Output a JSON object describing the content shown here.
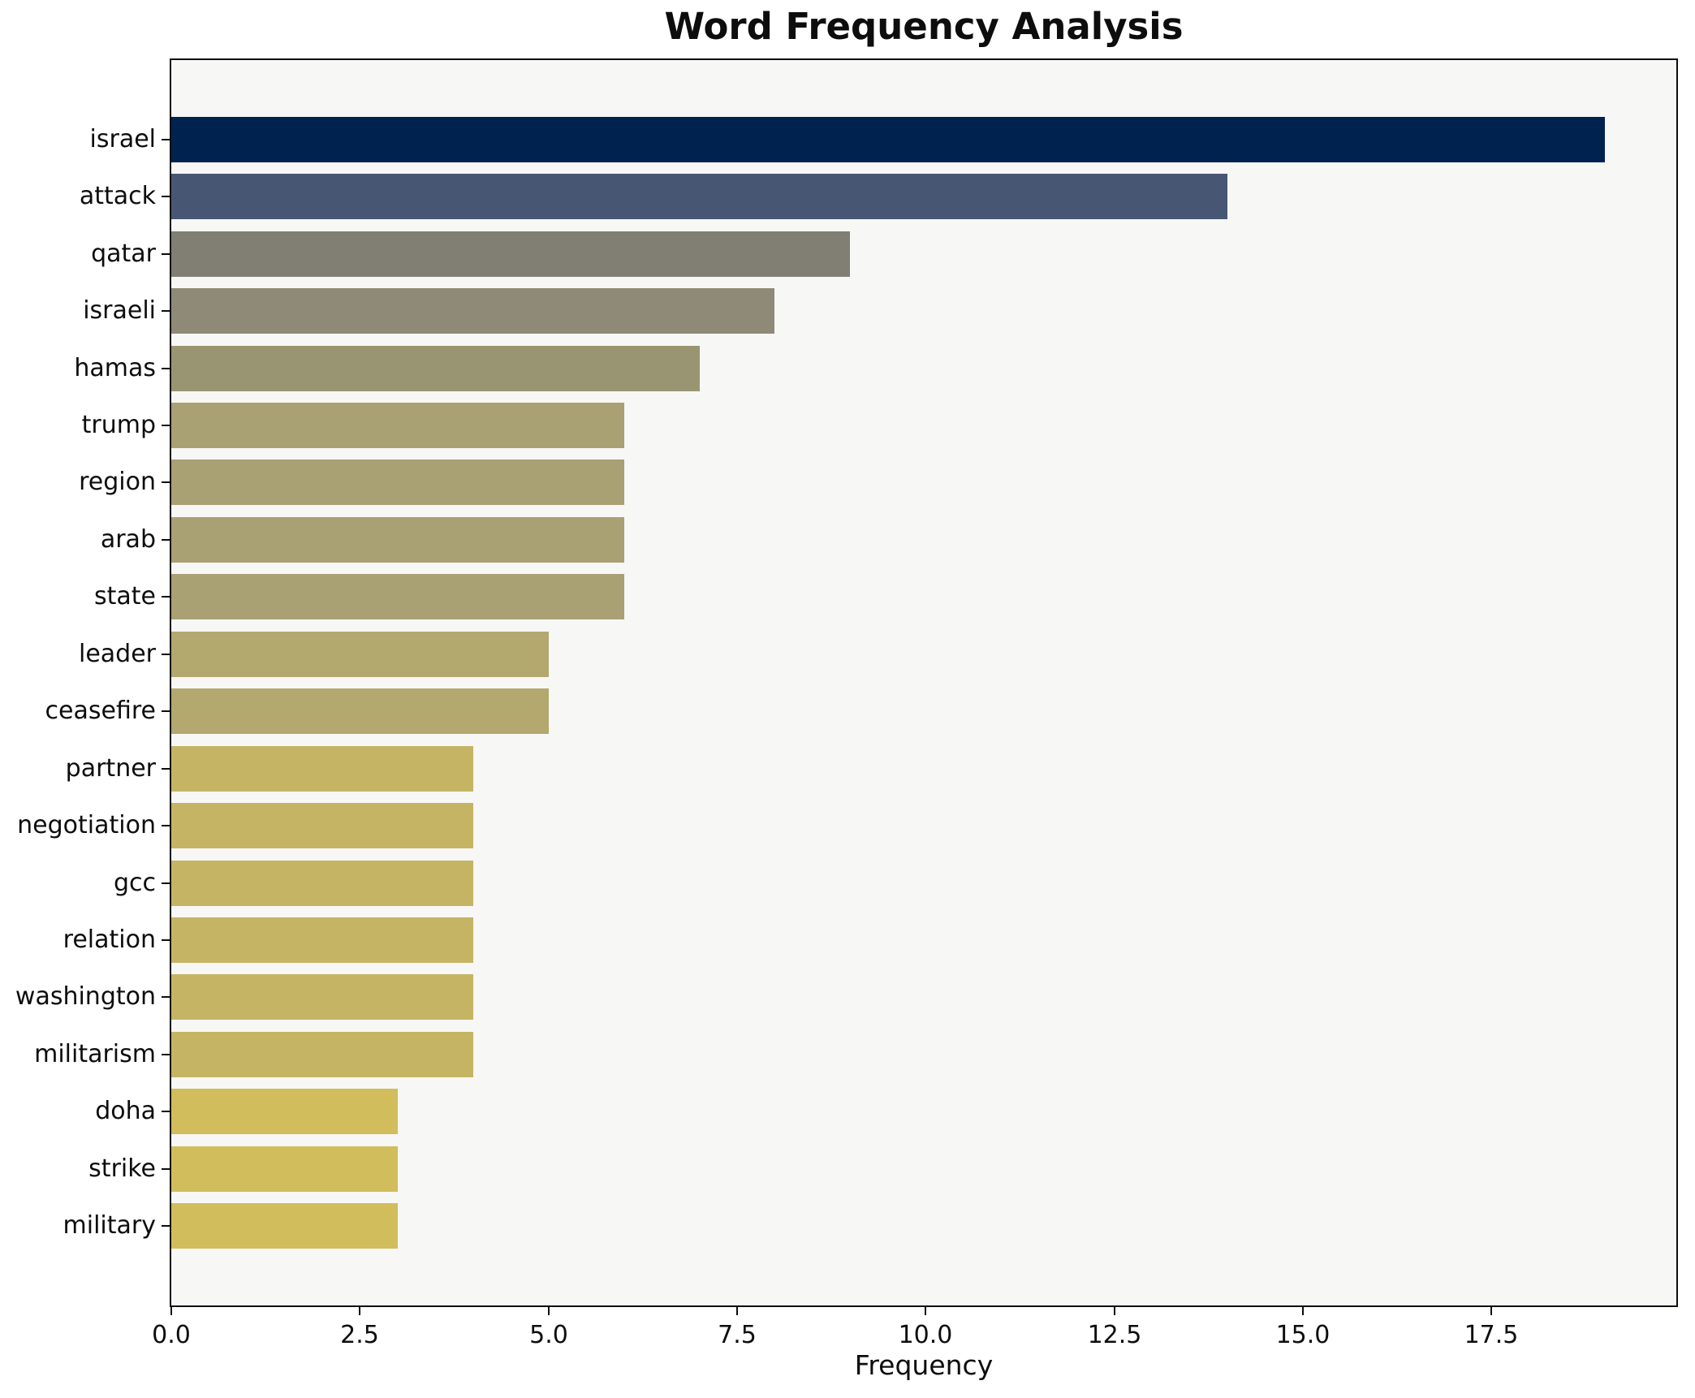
{
  "title": "Word Frequency Analysis",
  "chart_data": {
    "type": "bar",
    "orientation": "horizontal",
    "title": "Word Frequency Analysis",
    "xlabel": "Frequency",
    "ylabel": "",
    "grid": false,
    "legend": null,
    "plot_background": "#f7f7f6",
    "xlim": [
      0,
      19.95
    ],
    "x_tick_values": [
      0,
      2.5,
      5,
      7.5,
      10,
      12.5,
      15,
      17.5
    ],
    "x_tick_labels": [
      "0.0",
      "2.5",
      "5.0",
      "7.5",
      "10.0",
      "12.5",
      "15.0",
      "17.5"
    ],
    "categories": [
      "israel",
      "attack",
      "qatar",
      "israeli",
      "hamas",
      "trump",
      "region",
      "arab",
      "state",
      "leader",
      "ceasefire",
      "partner",
      "negotiation",
      "gcc",
      "relation",
      "washington",
      "militarism",
      "doha",
      "strike",
      "military"
    ],
    "values": [
      19,
      14,
      9,
      8,
      7,
      6,
      6,
      6,
      6,
      5,
      5,
      4,
      4,
      4,
      4,
      4,
      4,
      3,
      3,
      3
    ],
    "bar_colors": [
      "#00224e",
      "#475672",
      "#817e74",
      "#8e8a77",
      "#999572",
      "#a9a074",
      "#a9a074",
      "#a9a074",
      "#a9a074",
      "#b3a86e",
      "#b3a86e",
      "#c5b463",
      "#c5b463",
      "#c5b463",
      "#c5b463",
      "#c5b463",
      "#c5b463",
      "#d1bd5b",
      "#d1bd5b",
      "#d1bd5b"
    ]
  }
}
